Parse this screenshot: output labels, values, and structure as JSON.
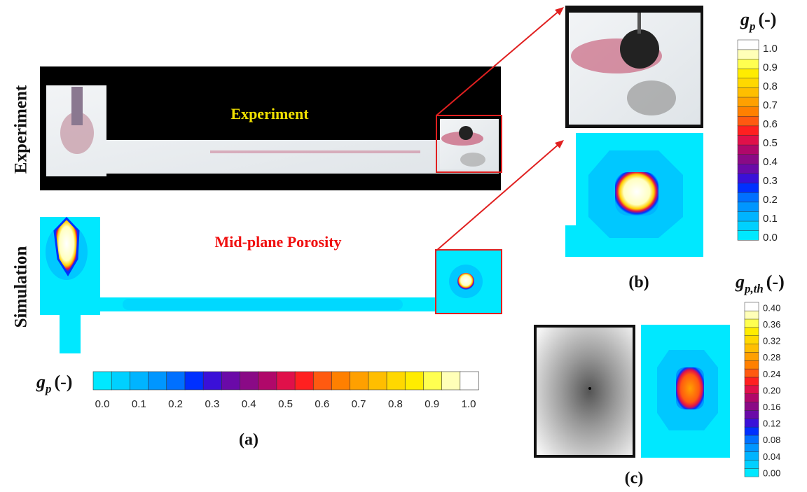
{
  "figure": {
    "row_labels": {
      "experiment": "Experiment",
      "simulation": "Simulation"
    },
    "overlay_experiment": "Experiment",
    "overlay_simulation": "Mid-plane Porosity",
    "panel_labels": {
      "a": "(a)",
      "b": "(b)",
      "c": "(c)"
    },
    "colormap": [
      "#00e8ff",
      "#00d0ff",
      "#00b4ff",
      "#0096ff",
      "#0070ff",
      "#0030ff",
      "#3a10d8",
      "#6a0aa8",
      "#8a0a86",
      "#b0086a",
      "#e0104a",
      "#ff2020",
      "#ff5a10",
      "#ff8000",
      "#ffa000",
      "#ffbe00",
      "#ffd800",
      "#ffec00",
      "#ffff50",
      "#ffffb8",
      "#ffffff"
    ],
    "colorbar_a": {
      "symbol": "g",
      "subscript": "p",
      "unit": "(-)",
      "ticks": [
        "0.0",
        "0.1",
        "0.2",
        "0.3",
        "0.4",
        "0.5",
        "0.6",
        "0.7",
        "0.8",
        "0.9",
        "1.0"
      ]
    },
    "colorbar_b": {
      "symbol": "g",
      "subscript": "p",
      "unit": "(-)",
      "ticks": [
        "1.0",
        "0.9",
        "0.8",
        "0.7",
        "0.6",
        "0.5",
        "0.4",
        "0.3",
        "0.2",
        "0.1",
        "0.0"
      ]
    },
    "colorbar_c": {
      "symbol": "g",
      "subscript": "p,th",
      "unit": "(-)",
      "ticks": [
        "0.40",
        "0.36",
        "0.32",
        "0.28",
        "0.24",
        "0.20",
        "0.16",
        "0.12",
        "0.08",
        "0.04",
        "0.00"
      ]
    }
  }
}
